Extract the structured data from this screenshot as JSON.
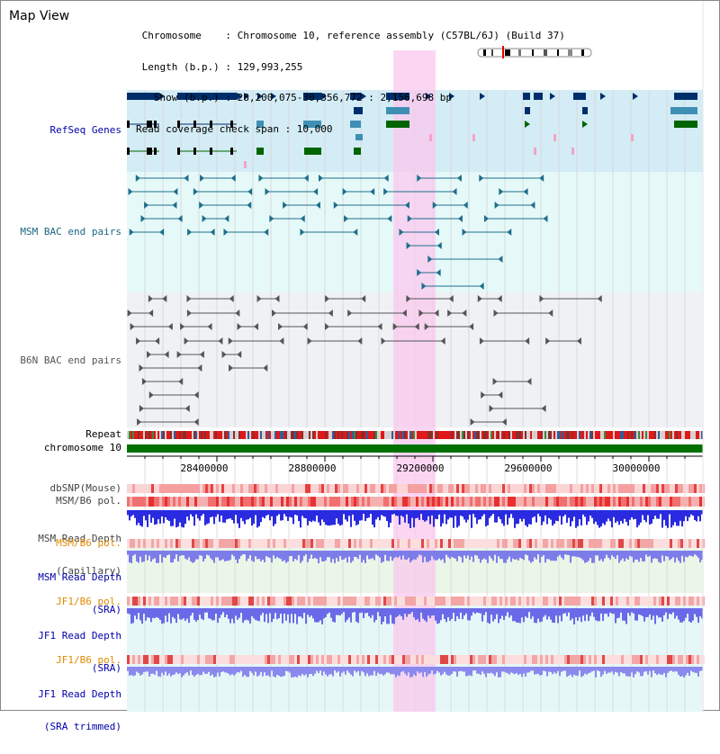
{
  "header": {
    "title": "Map View",
    "info_lines": [
      " Chromosome    : Chromosome 10, reference assembly (C57BL/6J) (Build 37)",
      " Length (b.p.) : 129,993,255",
      "   Show (b.p.) : 28,200,075-30,356,772 : 2,156,698 bp",
      "Read coverage check span : 10,000"
    ]
  },
  "tracks": {
    "refseq": "RefSeq Genes",
    "msm_bac": "MSM BAC end pairs",
    "b6n_bac": "B6N BAC end pairs",
    "repeat": "Repeat",
    "chromosome": "chromosome 10",
    "dbsnp": "dbSNP(Mouse)",
    "msm_b6_pol": "MSM/B6 pol.",
    "msm_depth_cap_1": "MSM Read Depth",
    "msm_depth_cap_2": "(Capillary)",
    "msm_b6_pol_sra": "MSM/B6 pol.",
    "msm_depth_sra_1": "MSM Read Depth",
    "msm_depth_sra_2": "(SRA)",
    "jf1_b6_pol": "JF1/B6 pol.",
    "jf1_depth_sra_1": "JF1 Read Depth",
    "jf1_depth_sra_2": "(SRA)",
    "jf1_b6_pol_trim": "JF1/B6 pol.",
    "jf1_depth_trim_1": "JF1 Read Depth",
    "jf1_depth_trim_2": "(SRA trimmed)"
  },
  "axis": {
    "ticks": [
      "28400000",
      "28800000",
      "29200000",
      "29600000",
      "30000000"
    ]
  },
  "colors": {
    "gene_navy": "#002e6b",
    "gene_teal": "#3f8fb5",
    "gene_green": "#006400",
    "msm_blue": "#1f6f8b",
    "b6n_gray": "#555555",
    "highlight": "#f9c8ee",
    "refseq_bg": "#d3ecf5",
    "bac_bg": "#e6f9f9",
    "label_blue": "#0000aa",
    "label_orange": "#e08a00",
    "label_teal": "#1a6680"
  }
}
